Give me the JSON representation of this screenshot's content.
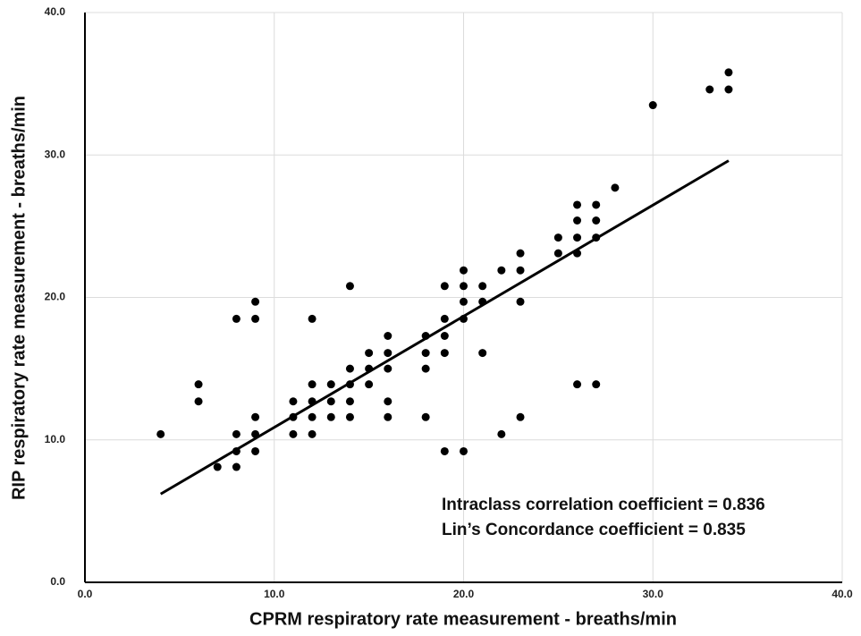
{
  "chart_data": {
    "type": "scatter",
    "x_label": "CPRM respiratory rate measurement - breaths/min",
    "y_label": "RIP respiratory rate measurement - breaths/min",
    "color": "#000000",
    "x": [
      4,
      6,
      6,
      7,
      8,
      8,
      8,
      8,
      9,
      9,
      9,
      9,
      9,
      11,
      11,
      11,
      12,
      12,
      12,
      12,
      12,
      13,
      13,
      13,
      14,
      14,
      14,
      14,
      14,
      15,
      15,
      15,
      16,
      16,
      16,
      16,
      16,
      18,
      18,
      18,
      18,
      19,
      19,
      19,
      19,
      19,
      20,
      20,
      20,
      20,
      20,
      21,
      21,
      21,
      22,
      22,
      23,
      23,
      23,
      23,
      25,
      25,
      26,
      26,
      26,
      26,
      26,
      27,
      27,
      27,
      27,
      28,
      30,
      33,
      34,
      34
    ],
    "values": [
      10.4,
      13.9,
      12.7,
      8.1,
      18.5,
      10.4,
      9.2,
      8.1,
      19.7,
      18.5,
      11.6,
      10.4,
      9.2,
      12.7,
      11.6,
      10.4,
      18.5,
      13.9,
      12.7,
      11.6,
      10.4,
      13.9,
      12.7,
      11.6,
      20.8,
      15.0,
      13.9,
      12.7,
      11.6,
      16.1,
      15.0,
      13.9,
      17.3,
      16.1,
      15.0,
      12.7,
      11.6,
      17.3,
      16.1,
      15.0,
      11.6,
      20.8,
      18.5,
      17.3,
      16.1,
      9.2,
      21.9,
      20.8,
      19.7,
      18.5,
      9.2,
      20.8,
      19.7,
      16.1,
      21.9,
      10.4,
      23.1,
      21.9,
      19.7,
      11.6,
      24.2,
      23.1,
      26.5,
      25.4,
      24.2,
      23.1,
      13.9,
      26.5,
      25.4,
      24.2,
      13.9,
      27.7,
      33.5,
      34.6,
      34.6,
      35.8
    ],
    "trendline": {
      "x": [
        4,
        34
      ],
      "y": [
        6.2,
        29.6
      ]
    },
    "annotations": [
      "Intraclass correlation coefficient = 0.836",
      "Lin’s Concordance coefficient = 0.835"
    ],
    "xlim": [
      0,
      40
    ],
    "ylim": [
      0,
      40
    ],
    "xticks": [
      {
        "value": 0,
        "label": "0.0"
      },
      {
        "value": 10,
        "label": "10.0"
      },
      {
        "value": 20,
        "label": "20.0"
      },
      {
        "value": 30,
        "label": "30.0"
      },
      {
        "value": 40,
        "label": "40.0"
      }
    ],
    "yticks": [
      {
        "value": 0,
        "label": "0.0"
      },
      {
        "value": 10,
        "label": "10.0"
      },
      {
        "value": 20,
        "label": "20.0"
      },
      {
        "value": 30,
        "label": "30.0"
      },
      {
        "value": 40,
        "label": "40.0"
      }
    ],
    "grid": true
  }
}
